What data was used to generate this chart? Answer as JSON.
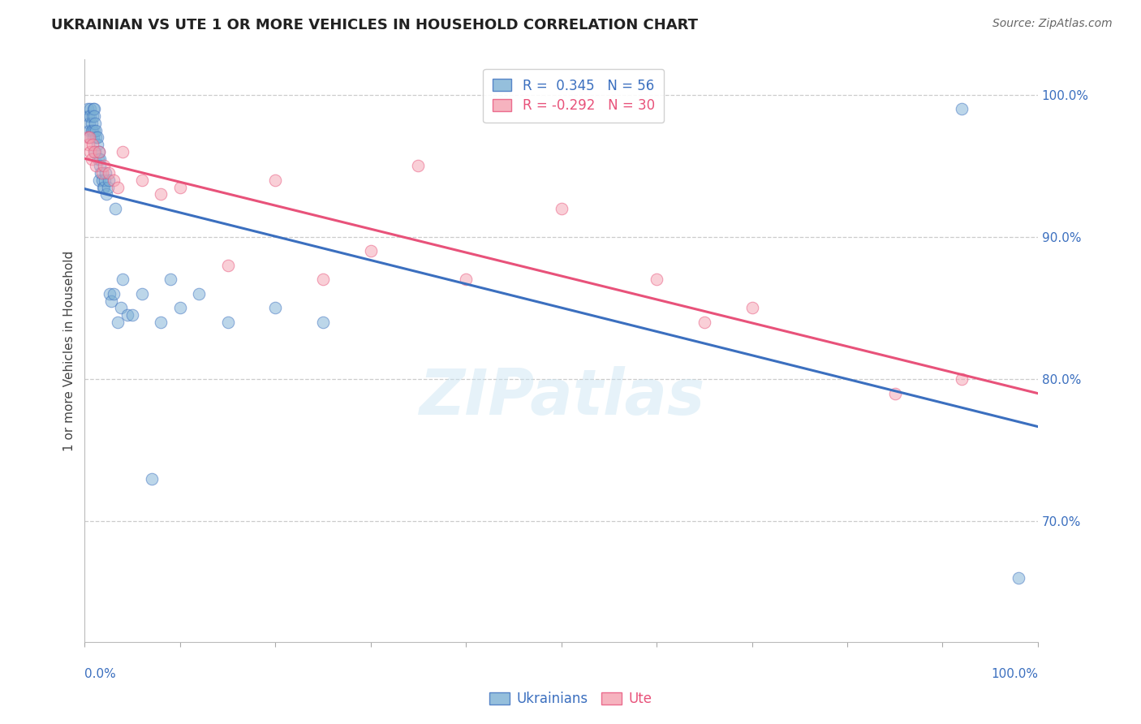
{
  "title": "UKRAINIAN VS UTE 1 OR MORE VEHICLES IN HOUSEHOLD CORRELATION CHART",
  "source": "Source: ZipAtlas.com",
  "ylabel": "1 or more Vehicles in Household",
  "ytick_labels": [
    "70.0%",
    "80.0%",
    "90.0%",
    "100.0%"
  ],
  "ytick_values": [
    0.7,
    0.8,
    0.9,
    1.0
  ],
  "xlim": [
    0.0,
    1.0
  ],
  "ylim": [
    0.615,
    1.025
  ],
  "legend_blue_r": "0.345",
  "legend_blue_n": "56",
  "legend_pink_r": "-0.292",
  "legend_pink_n": "30",
  "blue_color": "#7BAFD4",
  "pink_color": "#F4A0B0",
  "trendline_blue": "#3B6FBF",
  "trendline_pink": "#E8527A",
  "watermark": "ZIPatlas",
  "background_color": "#FFFFFF",
  "ukrainians_x": [
    0.003,
    0.004,
    0.005,
    0.005,
    0.005,
    0.006,
    0.006,
    0.007,
    0.007,
    0.008,
    0.008,
    0.009,
    0.009,
    0.01,
    0.01,
    0.01,
    0.011,
    0.011,
    0.012,
    0.012,
    0.013,
    0.013,
    0.014,
    0.015,
    0.015,
    0.016,
    0.016,
    0.017,
    0.018,
    0.019,
    0.02,
    0.021,
    0.022,
    0.023,
    0.024,
    0.025,
    0.026,
    0.028,
    0.03,
    0.032,
    0.035,
    0.038,
    0.04,
    0.045,
    0.05,
    0.06,
    0.07,
    0.08,
    0.09,
    0.1,
    0.12,
    0.15,
    0.2,
    0.25,
    0.92,
    0.98
  ],
  "ukrainians_y": [
    0.99,
    0.985,
    0.98,
    0.975,
    0.97,
    0.99,
    0.985,
    0.98,
    0.975,
    0.985,
    0.975,
    0.99,
    0.97,
    0.99,
    0.985,
    0.975,
    0.98,
    0.96,
    0.97,
    0.975,
    0.965,
    0.97,
    0.955,
    0.96,
    0.94,
    0.955,
    0.95,
    0.945,
    0.94,
    0.935,
    0.935,
    0.94,
    0.945,
    0.93,
    0.935,
    0.94,
    0.86,
    0.855,
    0.86,
    0.92,
    0.84,
    0.85,
    0.87,
    0.845,
    0.845,
    0.86,
    0.73,
    0.84,
    0.87,
    0.85,
    0.86,
    0.84,
    0.85,
    0.84,
    0.99,
    0.66
  ],
  "ute_x": [
    0.003,
    0.004,
    0.005,
    0.006,
    0.007,
    0.008,
    0.01,
    0.012,
    0.015,
    0.018,
    0.02,
    0.025,
    0.03,
    0.035,
    0.04,
    0.06,
    0.08,
    0.1,
    0.15,
    0.2,
    0.25,
    0.3,
    0.35,
    0.4,
    0.5,
    0.6,
    0.65,
    0.7,
    0.85,
    0.92
  ],
  "ute_y": [
    0.97,
    0.965,
    0.97,
    0.96,
    0.955,
    0.965,
    0.96,
    0.95,
    0.96,
    0.945,
    0.95,
    0.945,
    0.94,
    0.935,
    0.96,
    0.94,
    0.93,
    0.935,
    0.88,
    0.94,
    0.87,
    0.89,
    0.95,
    0.87,
    0.92,
    0.87,
    0.84,
    0.85,
    0.79,
    0.8
  ]
}
